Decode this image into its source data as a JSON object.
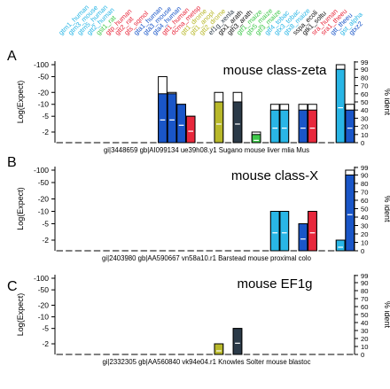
{
  "colors": {
    "cyan": "#29b6e6",
    "blue": "#1a56c8",
    "red": "#e8283c",
    "olive": "#b8b82a",
    "dark": "#2b3a48",
    "green": "#3ec84a",
    "black": "#111111"
  },
  "y_axis": {
    "label_left": "Log(Expect)",
    "ticks_left": [
      "-100",
      "-50",
      "-20",
      "-10",
      "-5",
      "-2"
    ],
    "label_right": "% ident",
    "ticks_right": [
      "99",
      "90",
      "80",
      "70",
      "60",
      "50",
      "40",
      "30",
      "20",
      "10",
      "0"
    ]
  },
  "columns": [
    {
      "label": "gtm1_human",
      "color": "cyan"
    },
    {
      "label": "gtm3_mouse",
      "color": "cyan"
    },
    {
      "label": "gtm5_human",
      "color": "cyan"
    },
    {
      "label": "gtt2_human",
      "color": "cyan"
    },
    {
      "label": "gst1_rat",
      "color": "green"
    },
    {
      "label": "gtp_human",
      "color": "red"
    },
    {
      "label": "gtt2_rat",
      "color": "red"
    },
    {
      "label": "gts_sqmol",
      "color": "red"
    },
    {
      "label": "gta1_human",
      "color": "blue"
    },
    {
      "label": "gta3_mouse",
      "color": "blue"
    },
    {
      "label": "gta4_human",
      "color": "blue"
    },
    {
      "label": "gtt1_human",
      "color": "red"
    },
    {
      "label": "dcma_metsp",
      "color": "red"
    },
    {
      "label": "gtt1_drome",
      "color": "olive"
    },
    {
      "label": "gtt1_anopl",
      "color": "olive"
    },
    {
      "label": "gtt2_drome",
      "color": "olive"
    },
    {
      "label": "ef1g_xenla",
      "color": "dark"
    },
    {
      "label": "gtx1_arath",
      "color": "black"
    },
    {
      "label": "gth3_arath",
      "color": "black"
    },
    {
      "label": "gtf1_maize",
      "color": "green"
    },
    {
      "label": "gtx5_maize",
      "color": "green"
    },
    {
      "label": "gtf3_maize",
      "color": "green"
    },
    {
      "label": "gtf4_tobac",
      "color": "cyan"
    },
    {
      "label": "gtx3_tobac",
      "color": "cyan"
    },
    {
      "label": "gtx8_maize",
      "color": "cyan"
    },
    {
      "label": "sspa_ecoli",
      "color": "black"
    },
    {
      "label": "gtk1_soltu",
      "color": "black"
    },
    {
      "label": "sra_human",
      "color": "red"
    },
    {
      "label": "sra1_theeu",
      "color": "red"
    },
    {
      "label": "gtt_theeu",
      "color": "blue"
    },
    {
      "label": "gst_alpha",
      "color": "cyan"
    },
    {
      "label": "gtxz2",
      "color": "blue"
    }
  ],
  "chart_data": [
    {
      "panel_letter": "A",
      "title": "mouse class-zeta",
      "query": "gi|3448659 gb|AI099134 ue39h08.y1 Sugano mouse liver mlia Mus",
      "type": "bar",
      "bars": [
        {
          "col": 11,
          "color": "blue",
          "top": -50,
          "ident": 60
        },
        {
          "col": 12,
          "color": "blue",
          "top": -20,
          "ident": 60
        },
        {
          "col": 13,
          "color": "blue",
          "top": -10,
          "ident": 60
        },
        {
          "col": 14,
          "color": "red",
          "top": -5,
          "ident": 40
        },
        {
          "col": 17,
          "color": "olive",
          "top": -20,
          "ident": 50
        },
        {
          "col": 19,
          "color": "dark",
          "top": -20,
          "ident": 50
        },
        {
          "col": 21,
          "color": "green",
          "top": -2,
          "ident": 10
        },
        {
          "col": 23,
          "color": "cyan",
          "top": -10,
          "ident": 40
        },
        {
          "col": 24,
          "color": "cyan",
          "top": -10,
          "ident": 40
        },
        {
          "col": 26,
          "color": "blue",
          "top": -10,
          "ident": 40
        },
        {
          "col": 27,
          "color": "red",
          "top": -10,
          "ident": 40
        },
        {
          "col": 30,
          "color": "cyan",
          "top": -100,
          "ident": 90
        },
        {
          "col": 31,
          "color": "blue",
          "top": -10,
          "ident": 40
        }
      ]
    },
    {
      "panel_letter": "B",
      "title": "mouse class-X",
      "query": "gi|2403980 gb|AA590667 vn58a10.r1 Barstead mouse proximal colo",
      "type": "bar",
      "bars": [
        {
          "col": 23,
          "color": "cyan",
          "top": -10,
          "ident": 60
        },
        {
          "col": 24,
          "color": "cyan",
          "top": -10,
          "ident": 60
        },
        {
          "col": 26,
          "color": "blue",
          "top": -5,
          "ident": 60
        },
        {
          "col": 27,
          "color": "red",
          "top": -10,
          "ident": 60
        },
        {
          "col": 30,
          "color": "cyan",
          "top": -2,
          "ident": 20
        },
        {
          "col": 31,
          "color": "blue",
          "top": -100,
          "ident": 90
        }
      ]
    },
    {
      "panel_letter": "C",
      "title": "mouse EF1g",
      "query": "gi|2332305 gb|AA560840 vk94e04.r1 Knowles Solter mouse blastoc",
      "type": "bar",
      "bars": [
        {
          "col": 17,
          "color": "olive",
          "top": -2,
          "ident": 40
        },
        {
          "col": 19,
          "color": "dark",
          "top": -5,
          "ident": 50
        }
      ]
    }
  ]
}
